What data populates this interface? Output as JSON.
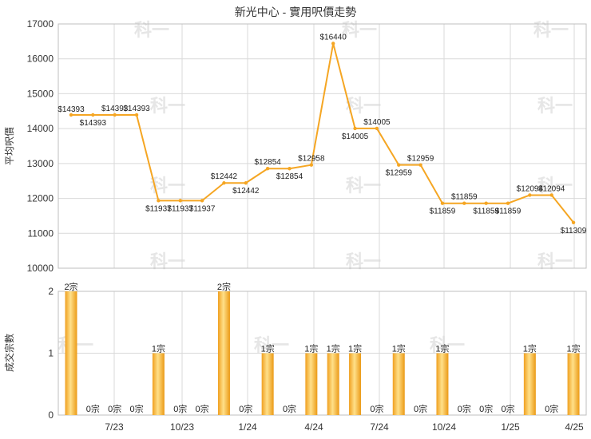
{
  "chart_data": [
    {
      "type": "line",
      "title": "新光中心 - 實用呎價走勢",
      "ylabel": "平均呎價",
      "ylim": [
        10000,
        17000
      ],
      "yticks": [
        10000,
        11000,
        12000,
        13000,
        14000,
        15000,
        16000,
        17000
      ],
      "color": "#f5a623",
      "values": [
        14393,
        14393,
        14393,
        14393,
        11937,
        11937,
        11937,
        12442,
        12442,
        12854,
        12854,
        12958,
        16440,
        14005,
        14005,
        12959,
        12959,
        11859,
        11859,
        11859,
        11859,
        12094,
        12094,
        11309
      ],
      "labels": [
        "$14393",
        "$14393",
        "$14393",
        "$14393",
        "$11937",
        "$11937",
        "$11937",
        "$12442",
        "$12442",
        "$12854",
        "$12854",
        "$12958",
        "$16440",
        "$14005",
        "$14005",
        "$12959",
        "$12959",
        "$11859",
        "$11859",
        "$11859",
        "$11859",
        "$12094",
        "$12094",
        "$11309"
      ],
      "grid": true
    },
    {
      "type": "bar",
      "ylabel": "成交宗數",
      "ylim": [
        0,
        2
      ],
      "yticks": [
        0,
        1,
        2
      ],
      "xticks": [
        "7/23",
        "10/23",
        "1/24",
        "4/24",
        "7/24",
        "10/24",
        "1/25",
        "4/25"
      ],
      "values": [
        2,
        0,
        0,
        0,
        1,
        0,
        0,
        2,
        0,
        1,
        0,
        1,
        1,
        1,
        0,
        1,
        0,
        1,
        0,
        0,
        0,
        1,
        0,
        1
      ],
      "labels": [
        "2宗",
        "0宗",
        "0宗",
        "0宗",
        "1宗",
        "0宗",
        "0宗",
        "2宗",
        "0宗",
        "1宗",
        "0宗",
        "1宗",
        "1宗",
        "1宗",
        "0宗",
        "1宗",
        "0宗",
        "1宗",
        "0宗",
        "0宗",
        "0宗",
        "1宗",
        "0宗",
        "1宗"
      ],
      "color": "#f5a623",
      "grid": true
    }
  ],
  "watermark": "科一"
}
